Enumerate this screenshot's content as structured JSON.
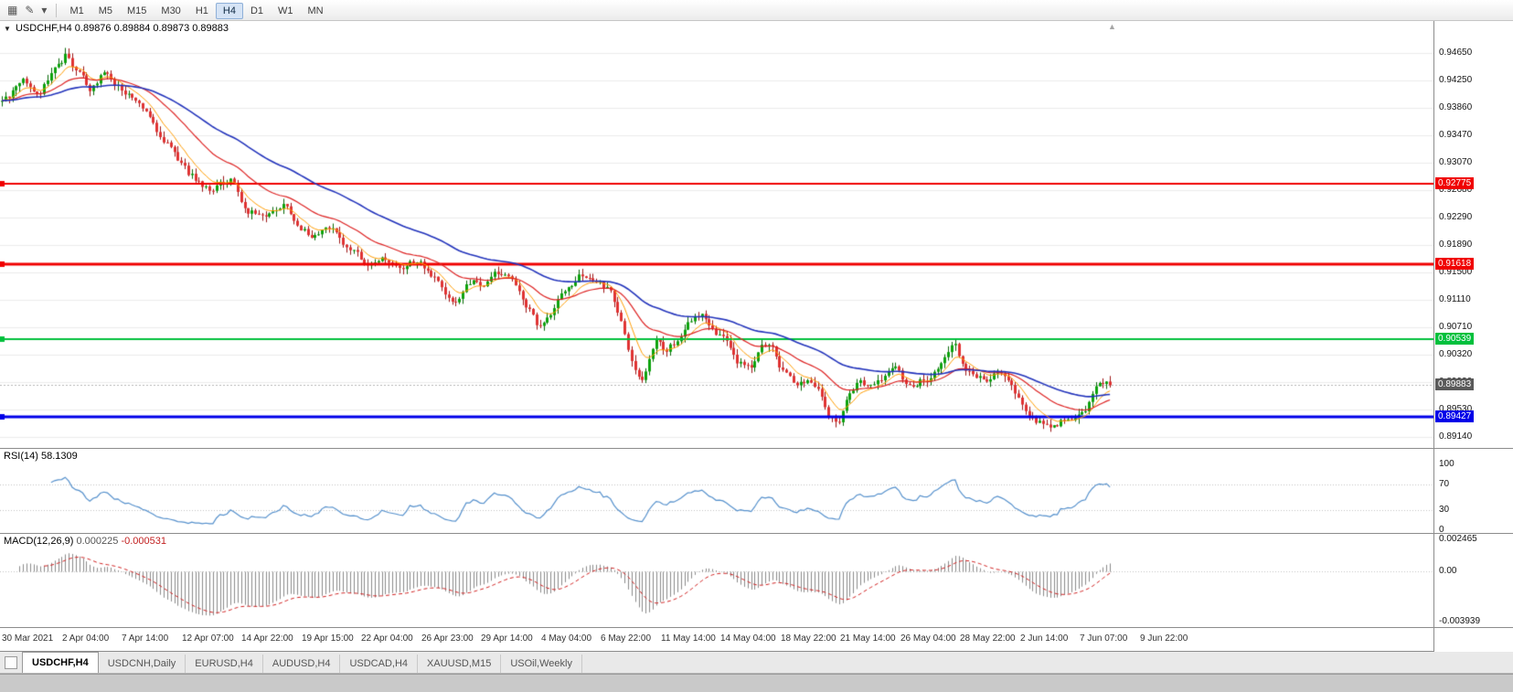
{
  "toolbar": {
    "left_icons": [
      {
        "name": "chart-window-icon",
        "glyph": "▦"
      },
      {
        "name": "drawing-tools-icon",
        "glyph": "✎"
      },
      {
        "name": "dropdown-arrow-icon",
        "glyph": "▾"
      }
    ],
    "timeframes": [
      {
        "label": "M1",
        "active": false
      },
      {
        "label": "M5",
        "active": false
      },
      {
        "label": "M15",
        "active": false
      },
      {
        "label": "M30",
        "active": false
      },
      {
        "label": "H1",
        "active": false
      },
      {
        "label": "H4",
        "active": true
      },
      {
        "label": "D1",
        "active": false
      },
      {
        "label": "W1",
        "active": false
      },
      {
        "label": "MN",
        "active": false
      }
    ]
  },
  "main_chart": {
    "collapse_icon": "▼",
    "symbol_period": "USDCHF,H4",
    "ohlc_text": "0.89876 0.89884 0.89873 0.89883",
    "shift_marker": "▲"
  },
  "rsi_panel": {
    "name_label": "RSI(14)",
    "value_label": "58.1309",
    "axis_labels": [
      "100",
      "70",
      "30",
      "0"
    ]
  },
  "macd_panel": {
    "name_label": "MACD(12,26,9)",
    "macd_value_label": "0.000225",
    "signal_value_label": "-0.000531",
    "axis_labels": [
      "0.002465",
      "0.00",
      "-0.003939"
    ]
  },
  "time_axis": {
    "labels": [
      "30 Mar 2021",
      "2 Apr 04:00",
      "7 Apr 14:00",
      "12 Apr 07:00",
      "14 Apr 22:00",
      "19 Apr 15:00",
      "22 Apr 04:00",
      "26 Apr 23:00",
      "29 Apr 14:00",
      "4 May 04:00",
      "6 May 22:00",
      "11 May 14:00",
      "14 May 04:00",
      "18 May 22:00",
      "21 May 14:00",
      "26 May 04:00",
      "28 May 22:00",
      "2 Jun 14:00",
      "7 Jun 07:00",
      "9 Jun 22:00"
    ]
  },
  "tabs": [
    {
      "label": "USDCHF,H4",
      "active": true
    },
    {
      "label": "USDCNH,Daily",
      "active": false
    },
    {
      "label": "EURUSD,H4",
      "active": false
    },
    {
      "label": "AUDUSD,H4",
      "active": false
    },
    {
      "label": "USDCAD,H4",
      "active": false
    },
    {
      "label": "XAUUSD,M15",
      "active": false
    },
    {
      "label": "USOil,Weekly",
      "active": false
    }
  ],
  "chart_data": {
    "type": "candlestick",
    "symbol": "USDCHF",
    "timeframe": "H4",
    "ohlc_current": {
      "open": 0.89876,
      "high": 0.89884,
      "low": 0.89873,
      "close": 0.89883
    },
    "y_axis": {
      "ticks": [
        "0.94650",
        "0.94250",
        "0.93860",
        "0.93470",
        "0.93070",
        "0.92680",
        "0.92290",
        "0.91890",
        "0.91500",
        "0.91110",
        "0.90710",
        "0.90320",
        "0.89930",
        "0.89530",
        "0.89140"
      ],
      "min": 0.88996,
      "max": 0.95109
    },
    "horizontal_lines": [
      {
        "value": 0.92775,
        "label": "0.92775",
        "color": "#f00000",
        "width": 2
      },
      {
        "value": 0.91618,
        "label": "0.91618",
        "color": "#f00000",
        "width": 3
      },
      {
        "value": 0.90539,
        "label": "0.90539",
        "color": "#00c03c",
        "width": 2
      },
      {
        "value": 0.89427,
        "label": "0.89427",
        "color": "#0000e8",
        "width": 3
      }
    ],
    "current_price": {
      "value": 0.89883,
      "label": "0.89883",
      "badge_color": "#5a5a5a"
    },
    "candles": {
      "count": 316,
      "region_width": 1216,
      "anchors_t": [
        0,
        0.02,
        0.035,
        0.048,
        0.058,
        0.068,
        0.08,
        0.09,
        0.103,
        0.115,
        0.13,
        0.15,
        0.17,
        0.19,
        0.205,
        0.22,
        0.24,
        0.255,
        0.27,
        0.285,
        0.3,
        0.315,
        0.33,
        0.345,
        0.36,
        0.375,
        0.385,
        0.4,
        0.41,
        0.42,
        0.435,
        0.45,
        0.465,
        0.475,
        0.485,
        0.495,
        0.51,
        0.525,
        0.54,
        0.55,
        0.56,
        0.57,
        0.578,
        0.59,
        0.6,
        0.61,
        0.62,
        0.632,
        0.645,
        0.655,
        0.665,
        0.675,
        0.685,
        0.695,
        0.705,
        0.715,
        0.725,
        0.735,
        0.745,
        0.755,
        0.765,
        0.775,
        0.785,
        0.795,
        0.805,
        0.815,
        0.825,
        0.835,
        0.848,
        0.858,
        0.868,
        0.878,
        0.888,
        0.898,
        0.908,
        0.918,
        0.928,
        0.938,
        0.948,
        0.958,
        0.968,
        0.978,
        0.988,
        1
      ],
      "anchors_price": [
        0.9395,
        0.9422,
        0.9408,
        0.9448,
        0.9463,
        0.944,
        0.9415,
        0.9433,
        0.942,
        0.9402,
        0.9378,
        0.9332,
        0.929,
        0.9262,
        0.9287,
        0.924,
        0.9227,
        0.9247,
        0.9214,
        0.92,
        0.9218,
        0.918,
        0.916,
        0.9172,
        0.9157,
        0.9168,
        0.915,
        0.9122,
        0.9108,
        0.9142,
        0.9127,
        0.9154,
        0.913,
        0.9098,
        0.9068,
        0.9092,
        0.9131,
        0.915,
        0.9132,
        0.9127,
        0.907,
        0.9008,
        0.8998,
        0.9052,
        0.9038,
        0.9056,
        0.9078,
        0.909,
        0.9066,
        0.9044,
        0.902,
        0.9012,
        0.9042,
        0.9038,
        0.9008,
        0.8992,
        0.8996,
        0.899,
        0.8945,
        0.8938,
        0.8978,
        0.8992,
        0.8985,
        0.9002,
        0.9022,
        0.8995,
        0.899,
        0.8998,
        0.9026,
        0.9056,
        0.9018,
        0.8995,
        0.8998,
        0.9006,
        0.8988,
        0.8968,
        0.8948,
        0.8934,
        0.8926,
        0.8942,
        0.8936,
        0.895,
        0.8986,
        0.8988
      ]
    },
    "colors": {
      "up_fill": "#0da30d",
      "up_edge": "#076807",
      "down_fill": "#e03232",
      "down_edge": "#9d1414",
      "grid": "#ebebeb"
    },
    "moving_averages": [
      {
        "type": "EMA",
        "period": 8,
        "color": "#ff9c00",
        "width": 1
      },
      {
        "type": "EMA",
        "period": 24,
        "color": "#dd2222",
        "width": 1.2
      },
      {
        "type": "EMA",
        "period": 55,
        "color": "#2233bb",
        "width": 1.6
      }
    ],
    "indicators": {
      "rsi": {
        "period": 14,
        "current": 58.1309,
        "levels": [
          70,
          30
        ],
        "range": [
          0,
          100
        ],
        "color": "#5590cc"
      },
      "macd": {
        "fast": 12,
        "slow": 26,
        "signal": 9,
        "current_macd": 0.000225,
        "current_signal": -0.000531,
        "range": [
          -0.003939,
          0.002465
        ],
        "hist_color": "#8a8a8a",
        "signal_color": "#d02020"
      }
    }
  }
}
